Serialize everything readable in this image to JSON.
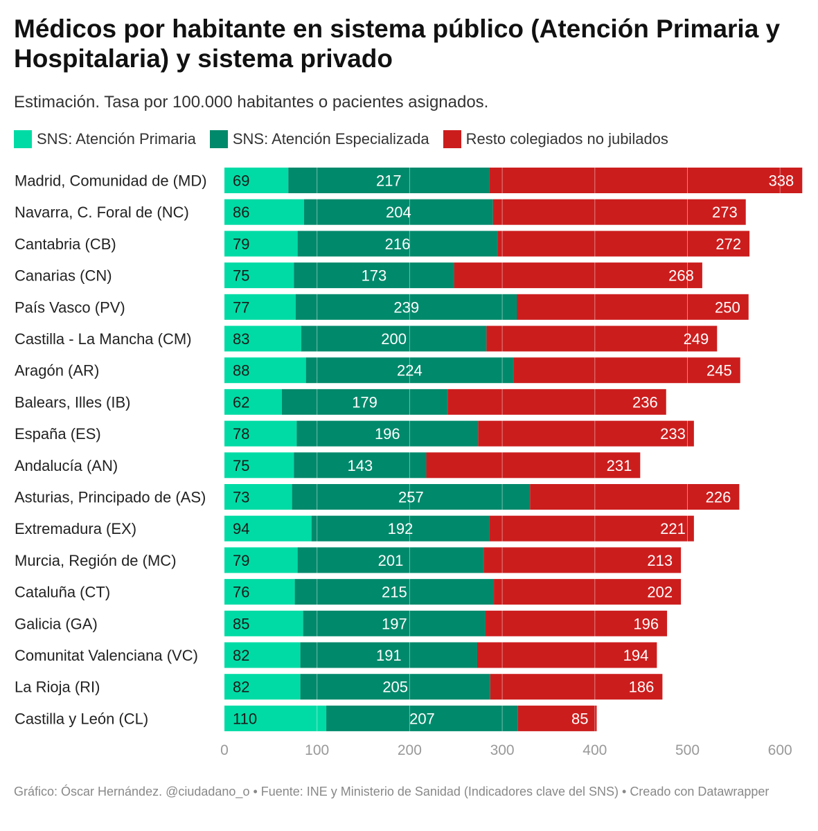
{
  "header": {
    "title": "Médicos por habitante en sistema público (Atención Primaria y Hospitalaria) y sistema privado",
    "subtitle": "Estimación. Tasa por 100.000 habitantes o pacientes asignados."
  },
  "legend": [
    {
      "label": "SNS: Atención Primaria",
      "color": "#00dba5"
    },
    {
      "label": "SNS: Atención Especializada",
      "color": "#00896b"
    },
    {
      "label": "Resto colegiados no jubilados",
      "color": "#cc1d1d"
    }
  ],
  "chart_data": {
    "type": "bar",
    "orientation": "horizontal",
    "stacked": true,
    "categories": [
      "Madrid, Comunidad de (MD)",
      "Navarra, C. Foral de (NC)",
      "Cantabria (CB)",
      "Canarias (CN)",
      "País Vasco (PV)",
      "Castilla - La Mancha (CM)",
      "Aragón (AR)",
      "Balears, Illes (IB)",
      "España (ES)",
      "Andalucía (AN)",
      "Asturias, Principado de (AS)",
      "Extremadura (EX)",
      "Murcia, Región de (MC)",
      "Cataluña (CT)",
      "Galicia (GA)",
      "Comunitat Valenciana (VC)",
      "La Rioja (RI)",
      "Castilla y León (CL)"
    ],
    "series": [
      {
        "name": "SNS: Atención Primaria",
        "color": "#00dba5",
        "values": [
          69,
          86,
          79,
          75,
          77,
          83,
          88,
          62,
          78,
          75,
          73,
          94,
          79,
          76,
          85,
          82,
          82,
          110
        ]
      },
      {
        "name": "SNS: Atención Especializada",
        "color": "#00896b",
        "values": [
          217,
          204,
          216,
          173,
          239,
          200,
          224,
          179,
          196,
          143,
          257,
          192,
          201,
          215,
          197,
          191,
          205,
          207
        ]
      },
      {
        "name": "Resto colegiados no jubilados",
        "color": "#cc1d1d",
        "values": [
          338,
          273,
          272,
          268,
          250,
          249,
          245,
          236,
          233,
          231,
          226,
          221,
          213,
          202,
          196,
          194,
          186,
          85
        ]
      }
    ],
    "x_ticks": [
      0,
      100,
      200,
      300,
      400,
      500,
      600
    ],
    "xlim": [
      0,
      600
    ],
    "grid": true,
    "value_labels": true,
    "legend_position": "top-left"
  },
  "footer": {
    "text": "Gráfico: Óscar Hernández. @ciudadano_o • Fuente: INE y Ministerio de Sanidad (Indicadores clave del SNS) • Creado con Datawrapper"
  }
}
